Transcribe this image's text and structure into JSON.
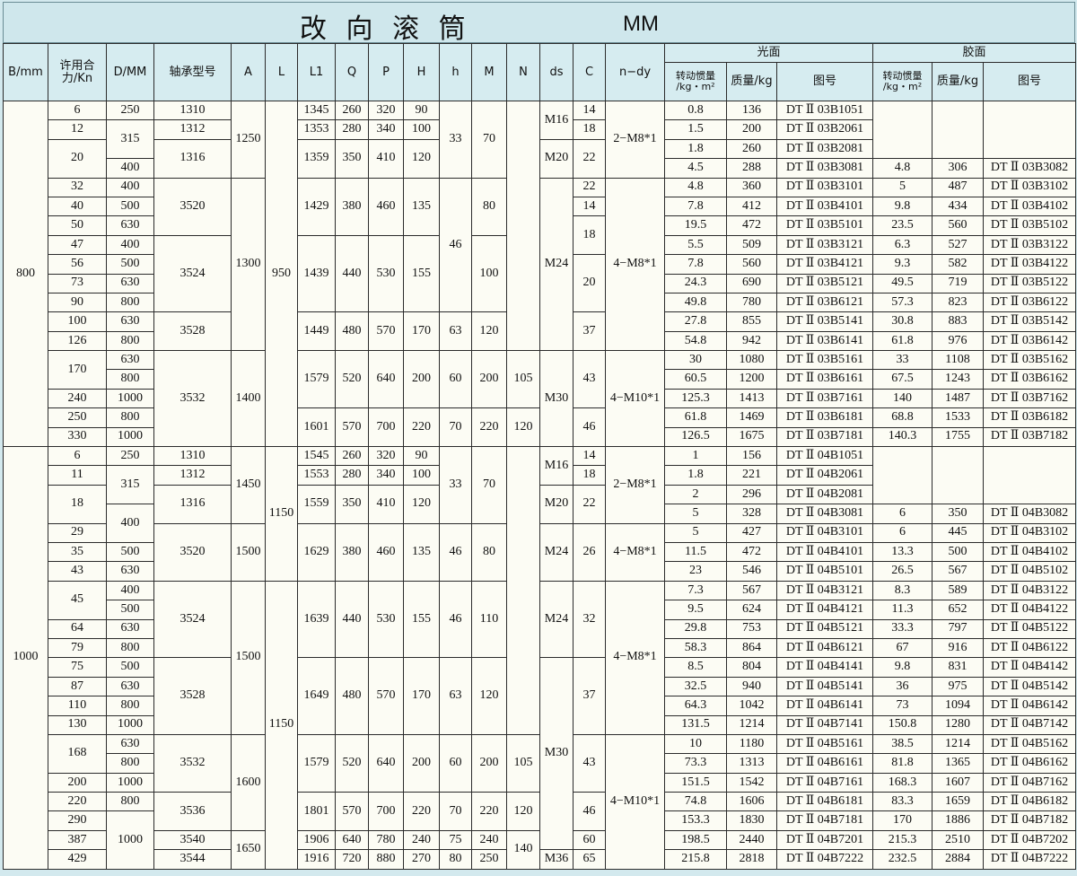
{
  "header": {
    "title": "改 向 滚 筒",
    "unit": "MM",
    "columns": [
      "B/mm",
      "许用合\n力/Kn",
      "D/MM",
      "轴承型号",
      "A",
      "L",
      "L1",
      "Q",
      "P",
      "H",
      "h",
      "M",
      "N",
      "ds",
      "C",
      "n−dy"
    ],
    "groups": [
      {
        "label": "光面",
        "columns": [
          "转动惯量\n/kg・m²",
          "质量/kg",
          "图号"
        ]
      },
      {
        "label": "胶面",
        "columns": [
          "转动惯量\n/kg・m²",
          "质量/kg",
          "图号"
        ]
      }
    ]
  },
  "body": {
    "sections": [
      {
        "rows": [
          [
            "800",
            "6",
            "250",
            "1310",
            "1250",
            "950",
            "1345",
            "260",
            "320",
            "90",
            "33",
            "70",
            null,
            "M16",
            "14",
            "2−M8*1",
            "0.8",
            "136",
            "DT Ⅱ 03B1051",
            null,
            null,
            null
          ],
          [
            null,
            "12",
            "315",
            "1312",
            null,
            null,
            "1353",
            "280",
            "340",
            "100",
            null,
            null,
            null,
            null,
            "18",
            null,
            "1.5",
            "200",
            "DT Ⅱ 03B2061",
            null,
            null,
            null
          ],
          [
            null,
            "20",
            null,
            "1316",
            null,
            null,
            "1359",
            "350",
            "410",
            "120",
            null,
            null,
            null,
            "M20",
            "22",
            null,
            "1.8",
            "260",
            "DT Ⅱ 03B2081",
            null,
            null,
            null
          ],
          [
            null,
            null,
            "400",
            null,
            null,
            null,
            null,
            null,
            null,
            null,
            null,
            null,
            null,
            null,
            null,
            null,
            "4.5",
            "288",
            "DT Ⅱ 03B3081",
            "4.8",
            "306",
            "DT Ⅱ 03B3082"
          ],
          [
            null,
            "32",
            "400",
            "3520",
            "1300",
            null,
            "1429",
            "380",
            "460",
            "135",
            "46",
            "80",
            null,
            "M24",
            "22",
            "4−M8*1",
            "4.8",
            "360",
            "DT Ⅱ 03B3101",
            "5",
            "487",
            "DT Ⅱ 03B3102"
          ],
          [
            null,
            "40",
            "500",
            null,
            null,
            null,
            null,
            null,
            null,
            null,
            null,
            null,
            null,
            null,
            "14",
            null,
            "7.8",
            "412",
            "DT Ⅱ 03B4101",
            "9.8",
            "434",
            "DT Ⅱ 03B4102"
          ],
          [
            null,
            "50",
            "630",
            null,
            null,
            null,
            null,
            null,
            null,
            null,
            null,
            null,
            null,
            null,
            "18",
            null,
            "19.5",
            "472",
            "DT Ⅱ 03B5101",
            "23.5",
            "560",
            "DT Ⅱ 03B5102"
          ],
          [
            null,
            "47",
            "400",
            "3524",
            null,
            null,
            "1439",
            "440",
            "530",
            "155",
            null,
            "100",
            null,
            null,
            null,
            null,
            "5.5",
            "509",
            "DT Ⅱ 03B3121",
            "6.3",
            "527",
            "DT Ⅱ 03B3122"
          ],
          [
            null,
            "56",
            "500",
            null,
            null,
            null,
            null,
            null,
            null,
            null,
            null,
            null,
            null,
            null,
            "20",
            null,
            "7.8",
            "560",
            "DT Ⅱ 03B4121",
            "9.3",
            "582",
            "DT Ⅱ 03B4122"
          ],
          [
            null,
            "73",
            "630",
            null,
            null,
            null,
            null,
            null,
            null,
            null,
            null,
            null,
            null,
            null,
            null,
            null,
            "24.3",
            "690",
            "DT Ⅱ 03B5121",
            "49.5",
            "719",
            "DT Ⅱ 03B5122"
          ],
          [
            null,
            "90",
            "800",
            null,
            null,
            null,
            null,
            null,
            null,
            null,
            null,
            null,
            null,
            null,
            null,
            null,
            "49.8",
            "780",
            "DT Ⅱ 03B6121",
            "57.3",
            "823",
            "DT Ⅱ 03B6122"
          ],
          [
            null,
            "100",
            "630",
            "3528",
            null,
            null,
            "1449",
            "480",
            "570",
            "170",
            "63",
            "120",
            null,
            null,
            "37",
            null,
            "27.8",
            "855",
            "DT Ⅱ 03B5141",
            "30.8",
            "883",
            "DT Ⅱ 03B5142"
          ],
          [
            null,
            "126",
            "800",
            null,
            null,
            null,
            null,
            null,
            null,
            null,
            null,
            null,
            null,
            null,
            null,
            null,
            "54.8",
            "942",
            "DT Ⅱ 03B6141",
            "61.8",
            "976",
            "DT Ⅱ 03B6142"
          ],
          [
            null,
            "170",
            "630",
            "3532",
            "1400",
            null,
            "1579",
            "520",
            "640",
            "200",
            "60",
            "200",
            "105",
            "M30",
            "43",
            "4−M10*1",
            "30",
            "1080",
            "DT Ⅱ 03B5161",
            "33",
            "1108",
            "DT Ⅱ 03B5162"
          ],
          [
            null,
            null,
            "800",
            null,
            null,
            null,
            null,
            null,
            null,
            null,
            null,
            null,
            null,
            null,
            null,
            null,
            "60.5",
            "1200",
            "DT Ⅱ 03B6161",
            "67.5",
            "1243",
            "DT Ⅱ 03B6162"
          ],
          [
            null,
            "240",
            "1000",
            null,
            null,
            null,
            null,
            null,
            null,
            null,
            null,
            null,
            null,
            null,
            null,
            null,
            "125.3",
            "1413",
            "DT Ⅱ 03B7161",
            "140",
            "1487",
            "DT Ⅱ 03B7162"
          ],
          [
            null,
            "250",
            "800",
            null,
            null,
            null,
            "1601",
            "570",
            "700",
            "220",
            "70",
            "220",
            "120",
            null,
            "46",
            null,
            "61.8",
            "1469",
            "DT Ⅱ 03B6181",
            "68.8",
            "1533",
            "DT Ⅱ 03B6182"
          ],
          [
            null,
            "330",
            "1000",
            null,
            null,
            null,
            null,
            null,
            null,
            null,
            null,
            null,
            null,
            null,
            null,
            null,
            "126.5",
            "1675",
            "DT Ⅱ 03B7181",
            "140.3",
            "1755",
            "DT Ⅱ 03B7182"
          ]
        ]
      },
      {
        "rows": [
          [
            "1000",
            "6",
            "250",
            "1310",
            "1450",
            "1150",
            "1545",
            "260",
            "320",
            "90",
            "33",
            "70",
            null,
            "M16",
            "14",
            "2−M8*1",
            "1",
            "156",
            "DT Ⅱ 04B1051",
            null,
            null,
            null
          ],
          [
            null,
            "11",
            "315",
            "1312",
            null,
            null,
            "1553",
            "280",
            "340",
            "100",
            null,
            null,
            null,
            null,
            "18",
            null,
            "1.8",
            "221",
            "DT Ⅱ 04B2061",
            null,
            null,
            null
          ],
          [
            null,
            "18",
            null,
            "1316",
            null,
            null,
            "1559",
            "350",
            "410",
            "120",
            null,
            null,
            null,
            "M20",
            "22",
            null,
            "2",
            "296",
            "DT Ⅱ 04B2081",
            null,
            null,
            null
          ],
          [
            null,
            null,
            "400",
            null,
            null,
            null,
            null,
            null,
            null,
            null,
            null,
            null,
            null,
            null,
            null,
            null,
            "5",
            "328",
            "DT Ⅱ 04B3081",
            "6",
            "350",
            "DT Ⅱ 04B3082"
          ],
          [
            null,
            "29",
            null,
            "3520",
            "1500",
            null,
            "1629",
            "380",
            "460",
            "135",
            "46",
            "80",
            null,
            "M24",
            "26",
            "4−M8*1",
            "5",
            "427",
            "DT Ⅱ 04B3101",
            "6",
            "445",
            "DT Ⅱ 04B3102"
          ],
          [
            null,
            "35",
            "500",
            null,
            null,
            null,
            null,
            null,
            null,
            null,
            null,
            null,
            null,
            null,
            null,
            null,
            "11.5",
            "472",
            "DT Ⅱ 04B4101",
            "13.3",
            "500",
            "DT Ⅱ 04B4102"
          ],
          [
            null,
            "43",
            "630",
            null,
            null,
            null,
            null,
            null,
            null,
            null,
            null,
            null,
            null,
            null,
            null,
            null,
            "23",
            "546",
            "DT Ⅱ 04B5101",
            "26.5",
            "567",
            "DT Ⅱ 04B5102"
          ],
          [
            null,
            "45",
            "400",
            "3524",
            "1500",
            "1150",
            "1639",
            "440",
            "530",
            "155",
            "46",
            "110",
            null,
            "M24",
            "32",
            "4−M8*1",
            "7.3",
            "567",
            "DT Ⅱ 04B3121",
            "8.3",
            "589",
            "DT Ⅱ 04B3122"
          ],
          [
            null,
            null,
            "500",
            null,
            null,
            null,
            null,
            null,
            null,
            null,
            null,
            null,
            null,
            null,
            null,
            null,
            "9.5",
            "624",
            "DT Ⅱ 04B4121",
            "11.3",
            "652",
            "DT Ⅱ 04B4122"
          ],
          [
            null,
            "64",
            "630",
            null,
            null,
            null,
            null,
            null,
            null,
            null,
            null,
            null,
            null,
            null,
            null,
            null,
            "29.8",
            "753",
            "DT Ⅱ 04B5121",
            "33.3",
            "797",
            "DT Ⅱ 04B5122"
          ],
          [
            null,
            "79",
            "800",
            null,
            null,
            null,
            null,
            null,
            null,
            null,
            null,
            null,
            null,
            null,
            null,
            null,
            "58.3",
            "864",
            "DT Ⅱ 04B6121",
            "67",
            "916",
            "DT Ⅱ 04B6122"
          ],
          [
            null,
            "75",
            "500",
            "3528",
            null,
            null,
            "1649",
            "480",
            "570",
            "170",
            "63",
            "120",
            null,
            "M30",
            "37",
            null,
            "8.5",
            "804",
            "DT Ⅱ 04B4141",
            "9.8",
            "831",
            "DT Ⅱ 04B4142"
          ],
          [
            null,
            "87",
            "630",
            null,
            null,
            null,
            null,
            null,
            null,
            null,
            null,
            null,
            null,
            null,
            null,
            null,
            "32.5",
            "940",
            "DT Ⅱ 04B5141",
            "36",
            "975",
            "DT Ⅱ 04B5142"
          ],
          [
            null,
            "110",
            "800",
            null,
            null,
            null,
            null,
            null,
            null,
            null,
            null,
            null,
            null,
            null,
            null,
            null,
            "64.3",
            "1042",
            "DT Ⅱ 04B6141",
            "73",
            "1094",
            "DT Ⅱ 04B6142"
          ],
          [
            null,
            "130",
            "1000",
            null,
            null,
            null,
            null,
            null,
            null,
            null,
            null,
            null,
            null,
            null,
            null,
            null,
            "131.5",
            "1214",
            "DT Ⅱ 04B7141",
            "150.8",
            "1280",
            "DT Ⅱ 04B7142"
          ],
          [
            null,
            "168",
            "630",
            "3532",
            "1600",
            null,
            "1579",
            "520",
            "640",
            "200",
            "60",
            "200",
            "105",
            null,
            "43",
            "4−M10*1",
            "10",
            "1180",
            "DT Ⅱ 04B5161",
            "38.5",
            "1214",
            "DT Ⅱ 04B5162"
          ],
          [
            null,
            null,
            "800",
            null,
            null,
            null,
            null,
            null,
            null,
            null,
            null,
            null,
            null,
            null,
            null,
            null,
            "73.3",
            "1313",
            "DT Ⅱ 04B6161",
            "81.8",
            "1365",
            "DT Ⅱ 04B6162"
          ],
          [
            null,
            "200",
            "1000",
            null,
            null,
            null,
            null,
            null,
            null,
            null,
            null,
            null,
            null,
            null,
            null,
            null,
            "151.5",
            "1542",
            "DT Ⅱ 04B7161",
            "168.3",
            "1607",
            "DT Ⅱ 04B7162"
          ],
          [
            null,
            "220",
            "800",
            "3536",
            null,
            null,
            "1801",
            "570",
            "700",
            "220",
            "70",
            "220",
            "120",
            null,
            "46",
            null,
            "74.8",
            "1606",
            "DT Ⅱ 04B6181",
            "83.3",
            "1659",
            "DT Ⅱ 04B6182"
          ],
          [
            null,
            "290",
            "1000",
            null,
            null,
            null,
            null,
            null,
            null,
            null,
            null,
            null,
            null,
            null,
            null,
            null,
            "153.3",
            "1830",
            "DT Ⅱ 04B7181",
            "170",
            "1886",
            "DT Ⅱ 04B7182"
          ],
          [
            null,
            "387",
            null,
            "3540",
            "1650",
            null,
            "1906",
            "640",
            "780",
            "240",
            "75",
            "240",
            "140",
            null,
            "60",
            null,
            "198.5",
            "2440",
            "DT Ⅱ 04B7201",
            "215.3",
            "2510",
            "DT Ⅱ 04B7202"
          ],
          [
            null,
            "429",
            null,
            "3544",
            null,
            null,
            "1916",
            "720",
            "880",
            "270",
            "80",
            "250",
            null,
            "M36",
            "65",
            null,
            "215.8",
            "2818",
            "DT Ⅱ 04B7222",
            "232.5",
            "2884",
            "DT Ⅱ 04B7222"
          ]
        ]
      }
    ]
  }
}
